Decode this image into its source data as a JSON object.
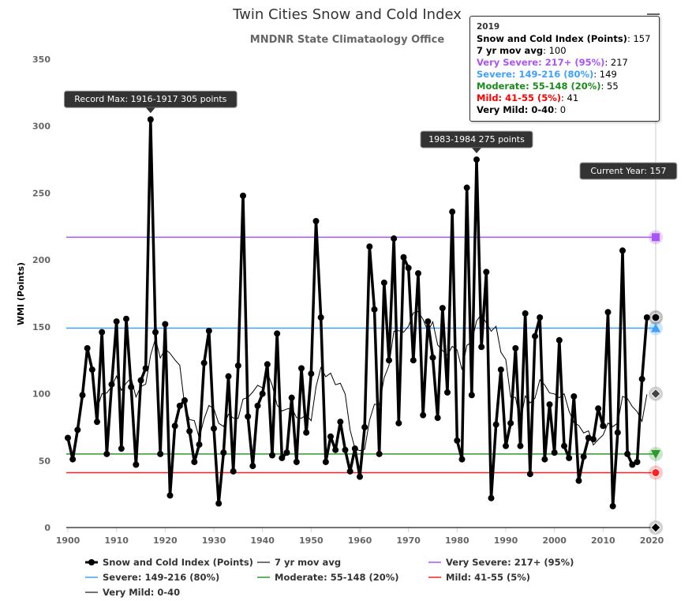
{
  "chart_data": {
    "type": "line",
    "title": "Twin Cities Snow and Cold Index",
    "subtitle": "MNDNR State Climataology Office",
    "ylabel": "WMI (Points)",
    "xlabel": "",
    "xlim": [
      1898,
      2022
    ],
    "ylim": [
      0,
      350
    ],
    "xticks": [
      1900,
      1910,
      1920,
      1930,
      1940,
      1950,
      1960,
      1970,
      1980,
      1990,
      2000,
      2010,
      2020
    ],
    "yticks": [
      0,
      50,
      100,
      150,
      200,
      250,
      300,
      350
    ],
    "x_start": 1900,
    "values": [
      67,
      51,
      73,
      99,
      134,
      118,
      79,
      146,
      55,
      107,
      154,
      59,
      156,
      105,
      47,
      110,
      119,
      305,
      146,
      55,
      152,
      24,
      76,
      91,
      95,
      72,
      49,
      62,
      123,
      147,
      74,
      18,
      56,
      113,
      42,
      121,
      248,
      83,
      46,
      91,
      100,
      122,
      54,
      145,
      52,
      56,
      97,
      49,
      119,
      71,
      115,
      229,
      157,
      49,
      68,
      58,
      79,
      58,
      42,
      59,
      38,
      75,
      210,
      163,
      55,
      183,
      125,
      216,
      78,
      202,
      194,
      125,
      190,
      84,
      154,
      127,
      82,
      164,
      101,
      236,
      65,
      51,
      254,
      99,
      275,
      135,
      191,
      22,
      77,
      118,
      61,
      78,
      134,
      61,
      160,
      40,
      143,
      157,
      51,
      92,
      56,
      140,
      61,
      52,
      98,
      35,
      53,
      67,
      66,
      89,
      76,
      161,
      16,
      71,
      207,
      55,
      47,
      49,
      111,
      157
    ],
    "moving_avg_window": 7,
    "thresholds": [
      {
        "name": "Very Severe: 217+ (95%)",
        "value": 217,
        "color": "#a855f7"
      },
      {
        "name": "Severe: 149-216 (80%)",
        "value": 149,
        "color": "#3fa0ff"
      },
      {
        "name": "Moderate: 55-148 (20%)",
        "value": 55,
        "color": "#2e9a2e"
      },
      {
        "name": "Mild: 41-55 (5%)",
        "value": 41,
        "color": "#ff2020"
      },
      {
        "name": "Very Mild: 0-40",
        "value": 0,
        "color": "#444444"
      }
    ],
    "legend": [
      "Snow and Cold Index (Points)",
      "7 yr mov avg",
      "Very Severe: 217+ (95%)",
      "Severe: 149-216 (80%)",
      "Moderate: 55-148 (20%)",
      "Mild: 41-55 (5%)",
      "Very Mild: 0-40"
    ],
    "legend_placement": "bottom",
    "annotations": [
      {
        "text": "Record Max: 1916-1917 305 points",
        "x": 1917,
        "y": 305
      },
      {
        "text": "1983-1984 275 points",
        "x": 1984,
        "y": 275
      },
      {
        "text": "Current Year: 157",
        "x": 2020,
        "y": 157
      }
    ]
  },
  "tooltip": {
    "year": "2019",
    "rows": [
      {
        "label": "Snow and Cold Index (Points)",
        "value": "157",
        "color": "#000000"
      },
      {
        "label": "7 yr mov avg",
        "value": "100",
        "color": "#000000"
      },
      {
        "label": "Very Severe: 217+ (95%)",
        "value": "217",
        "color": "#a855f7"
      },
      {
        "label": "Severe: 149-216 (80%)",
        "value": "149",
        "color": "#3fa0ff"
      },
      {
        "label": "Moderate: 55-148 (20%)",
        "value": "55",
        "color": "#1a8a1a"
      },
      {
        "label": "Mild: 41-55 (5%)",
        "value": "41",
        "color": "#ff0000"
      },
      {
        "label": "Very Mild: 0-40",
        "value": "0",
        "color": "#000000"
      }
    ]
  }
}
